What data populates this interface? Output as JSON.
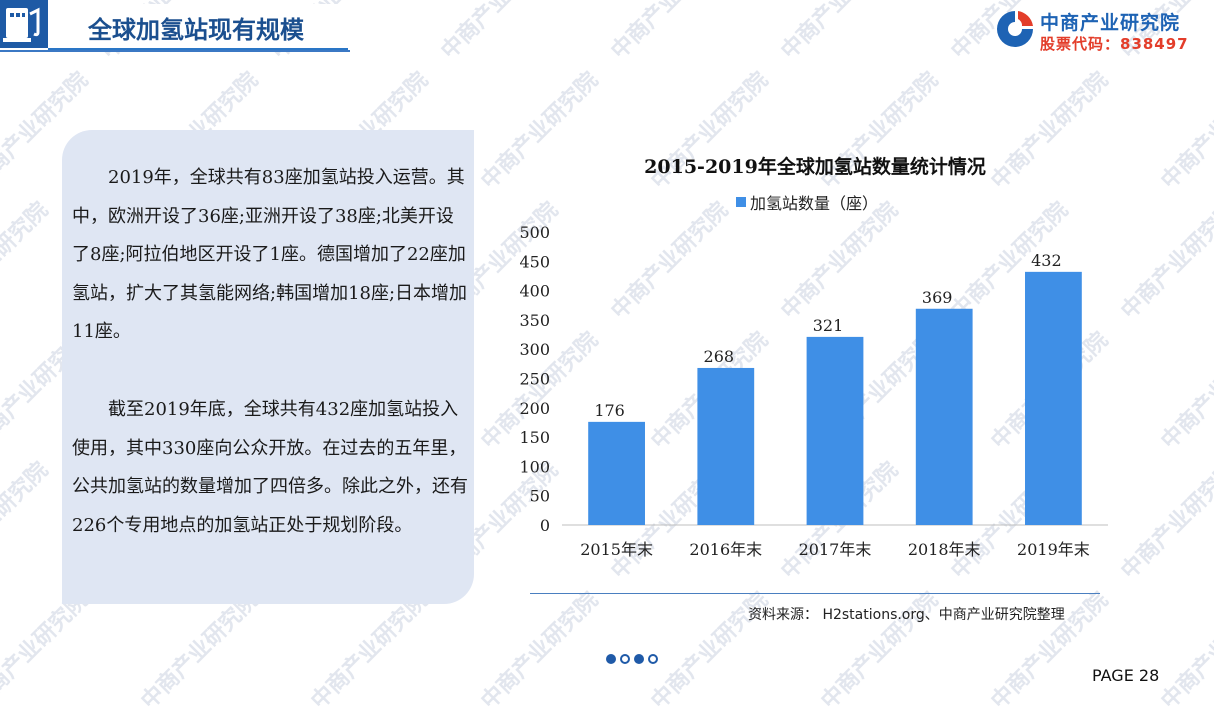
{
  "header": {
    "title": "全球加氢站现有规模"
  },
  "brand": {
    "name": "中商产业研究院",
    "stock_code": "股票代码：838497"
  },
  "watermark": "中商产业研究院",
  "body_text": {
    "paragraph_1": "2019年，全球共有83座加氢站投入运营。其中，欧洲开设了36座;亚洲开设了38座;北美开设了8座;阿拉伯地区开设了1座。德国增加了22座加氢站，扩大了其氢能网络;韩国增加18座;日本增加11座。",
    "paragraph_2": "截至2019年底，全球共有432座加氢站投入使用，其中330座向公众开放。在过去的五年里，公共加氢站的数量增加了四倍多。除此之外，还有226个专用地点的加氢站正处于规划阶段。"
  },
  "chart_data": {
    "type": "bar",
    "title": "2015-2019年全球加氢站数量统计情况",
    "categories": [
      "2015年末",
      "2016年末",
      "2017年末",
      "2018年末",
      "2019年末"
    ],
    "series": [
      {
        "name": "加氢站数量（座）",
        "values": [
          176,
          268,
          321,
          369,
          432
        ]
      }
    ],
    "ylim": [
      0,
      500
    ],
    "yticks": [
      0,
      50,
      100,
      150,
      200,
      250,
      300,
      350,
      400,
      450,
      500
    ],
    "grid": false,
    "legend_position": "top",
    "bar_color": "#3f8fe6",
    "data_labels": true
  },
  "source": "资料来源： H2stations.org、中商产业研究院整理",
  "pagination": {
    "dots": [
      "filled",
      "hollow",
      "filled",
      "hollow"
    ]
  },
  "page_number": "PAGE 28",
  "colors": {
    "accent": "#1e63b4",
    "brand_red": "#e33d2a",
    "panel": "#dfe6f3",
    "bar": "#3f8fe6"
  }
}
